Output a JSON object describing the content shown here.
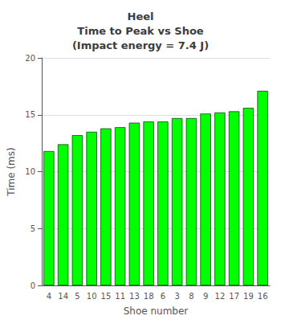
{
  "chart_data": {
    "type": "bar",
    "title": "Heel\nTime to Peak vs Shoe\n(Impact energy = 7.4 J)",
    "xlabel": "Shoe number",
    "ylabel": "Time (ms)",
    "categories": [
      "4",
      "14",
      "5",
      "10",
      "15",
      "11",
      "13",
      "18",
      "6",
      "3",
      "8",
      "9",
      "12",
      "17",
      "19",
      "16"
    ],
    "values": [
      11.8,
      12.4,
      13.2,
      13.5,
      13.8,
      13.9,
      14.3,
      14.4,
      14.4,
      14.7,
      14.7,
      15.1,
      15.2,
      15.3,
      15.6,
      17.1
    ],
    "color": "#00FF00",
    "ylim": [
      0,
      20
    ],
    "yticks": [
      0,
      5,
      10,
      15,
      20
    ],
    "grid": true
  }
}
